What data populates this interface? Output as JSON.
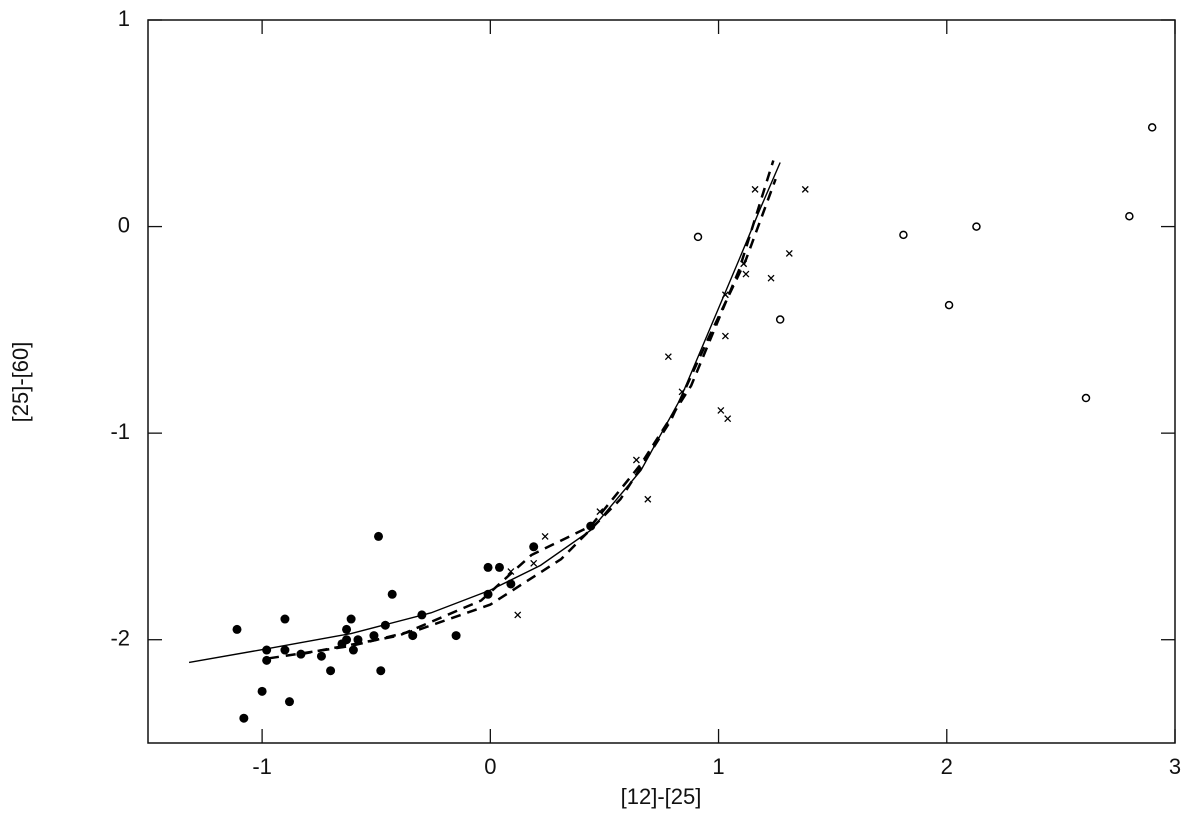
{
  "chart_data": {
    "type": "scatter",
    "x_label": "[12]-[25]",
    "y_label": "[25]-[60]",
    "xlim": [
      -1.5,
      3
    ],
    "ylim": [
      -2.5,
      1
    ],
    "xticks": [
      -1,
      0,
      1,
      2,
      3
    ],
    "yticks": [
      -2,
      -1,
      0,
      1
    ],
    "grid": false,
    "series": [
      {
        "marker": "dot",
        "color": "#000000",
        "x": [
          -1.11,
          -0.98,
          -0.98,
          -1.0,
          -1.08,
          -0.9,
          -0.9,
          -0.88,
          -0.83,
          -0.74,
          -0.7,
          -0.65,
          -0.63,
          -0.63,
          -0.61,
          -0.6,
          -0.58,
          -0.51,
          -0.49,
          -0.48,
          -0.46,
          -0.43,
          -0.34,
          -0.3,
          -0.15,
          -0.01,
          -0.01,
          0.04,
          0.09,
          0.19,
          0.44
        ],
        "values": [
          -1.95,
          -2.05,
          -2.1,
          -2.25,
          -2.38,
          -1.9,
          -2.05,
          -2.3,
          -2.07,
          -2.08,
          -2.15,
          -2.02,
          -1.95,
          -2.0,
          -1.9,
          -2.05,
          -2.0,
          -1.98,
          -1.5,
          -2.15,
          -1.93,
          -1.78,
          -1.98,
          -1.88,
          -1.98,
          -1.65,
          -1.78,
          -1.65,
          -1.73,
          -1.55,
          -1.45
        ]
      },
      {
        "marker": "cross",
        "color": "#000000",
        "x": [
          0.09,
          0.12,
          0.19,
          0.24,
          0.48,
          0.64,
          0.69,
          0.78,
          0.84,
          1.01,
          1.04,
          1.03,
          1.03,
          1.11,
          1.12,
          1.16,
          1.23,
          1.31,
          1.38
        ],
        "values": [
          -1.67,
          -1.88,
          -1.63,
          -1.5,
          -1.38,
          -1.13,
          -1.32,
          -0.63,
          -0.8,
          -0.89,
          -0.93,
          -0.53,
          -0.33,
          -0.18,
          -0.23,
          0.18,
          -0.25,
          -0.13,
          0.18
        ]
      },
      {
        "marker": "circle",
        "color": "#000000",
        "x": [
          0.91,
          1.27,
          1.81,
          2.01,
          2.13,
          2.61,
          2.8,
          2.9
        ],
        "values": [
          -0.05,
          -0.45,
          -0.04,
          -0.38,
          0.0,
          -0.83,
          0.05,
          0.48
        ]
      },
      {
        "marker": "line",
        "dash": "solid",
        "color": "#000000",
        "x": [
          -1.32,
          -1.01,
          -0.61,
          -0.26,
          0,
          0.22,
          0.44,
          0.66,
          0.83,
          0.96,
          1.09,
          1.18,
          1.27
        ],
        "values": [
          -2.11,
          -2.05,
          -1.97,
          -1.87,
          -1.76,
          -1.64,
          -1.47,
          -1.18,
          -0.84,
          -0.5,
          -0.16,
          0.08,
          0.31
        ]
      },
      {
        "marker": "line",
        "dash": "dashed",
        "color": "#000000",
        "x": [
          -0.97,
          -0.61,
          -0.31,
          0,
          0.31,
          0.57,
          0.79,
          0.96,
          1.12,
          1.25
        ],
        "values": [
          -2.09,
          -2.03,
          -1.95,
          -1.83,
          -1.61,
          -1.32,
          -0.94,
          -0.53,
          -0.16,
          0.23
        ]
      },
      {
        "marker": "line",
        "dash": "dashed",
        "color": "#000000",
        "x": [
          -0.83,
          -0.4,
          -0.04,
          0.18,
          0.44,
          0.66,
          0.88,
          1.09,
          1.24
        ],
        "values": [
          -2.07,
          -1.98,
          -1.81,
          -1.59,
          -1.45,
          -1.15,
          -0.77,
          -0.21,
          0.32
        ]
      }
    ]
  }
}
